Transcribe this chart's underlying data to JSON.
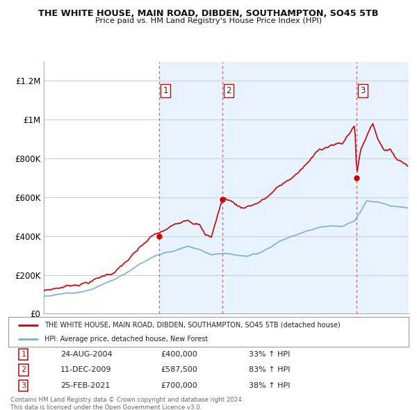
{
  "title": "THE WHITE HOUSE, MAIN ROAD, DIBDEN, SOUTHAMPTON, SO45 5TB",
  "subtitle": "Price paid vs. HM Land Registry's House Price Index (HPI)",
  "ylabel_ticks": [
    "£0",
    "£200K",
    "£400K",
    "£600K",
    "£800K",
    "£1M",
    "£1.2M"
  ],
  "ytick_values": [
    0,
    200000,
    400000,
    600000,
    800000,
    1000000,
    1200000
  ],
  "ylim": [
    0,
    1300000
  ],
  "xlim_start": 1995.0,
  "xlim_end": 2025.5,
  "sale_dates": [
    2004.646,
    2009.944,
    2021.154
  ],
  "sale_prices": [
    400000,
    587500,
    700000
  ],
  "sale_labels": [
    "1",
    "2",
    "3"
  ],
  "sale_date_strs": [
    "24-AUG-2004",
    "11-DEC-2009",
    "25-FEB-2021"
  ],
  "sale_price_strs": [
    "£400,000",
    "£587,500",
    "£700,000"
  ],
  "sale_pct_strs": [
    "33% ↑ HPI",
    "83% ↑ HPI",
    "38% ↑ HPI"
  ],
  "legend_line1": "THE WHITE HOUSE, MAIN ROAD, DIBDEN, SOUTHAMPTON, SO45 5TB (detached house)",
  "legend_line2": "HPI: Average price, detached house, New Forest",
  "footer_line1": "Contains HM Land Registry data © Crown copyright and database right 2024.",
  "footer_line2": "This data is licensed under the Open Government Licence v3.0.",
  "red_color": "#cc0000",
  "blue_color": "#7aaed6",
  "shade_color": "#ddeeff",
  "dashed_color": "#dd4444",
  "bg_color": "#ffffff",
  "grid_color": "#cccccc",
  "label_text_color": "#222222"
}
